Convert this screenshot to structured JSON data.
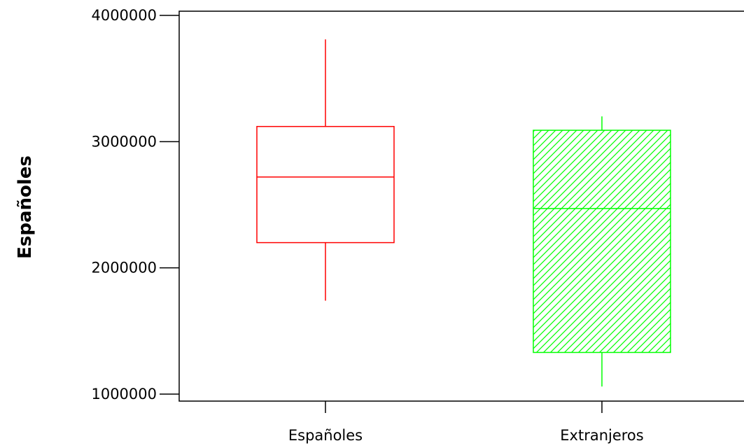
{
  "chart_data": {
    "type": "box",
    "title": "",
    "xlabel": "",
    "ylabel": "Españoles",
    "ylim": [
      1000000,
      4000000
    ],
    "yticks": [
      1000000,
      2000000,
      3000000,
      4000000
    ],
    "ytick_labels": [
      "1000000",
      "2000000",
      "3000000",
      "4000000"
    ],
    "grid": false,
    "categories": [
      "Españoles",
      "Extranjeros"
    ],
    "boxes": [
      {
        "category": "Españoles",
        "whisker_low": 1740000,
        "q1": 2200000,
        "median": 2720000,
        "q3": 3120000,
        "whisker_high": 3810000,
        "color": "#ff0000",
        "fill": "none"
      },
      {
        "category": "Extranjeros",
        "whisker_low": 1060000,
        "q1": 1330000,
        "median": 2470000,
        "q3": 3090000,
        "whisker_high": 3200000,
        "color": "#00ff00",
        "fill": "diagonal-hatch"
      }
    ]
  }
}
